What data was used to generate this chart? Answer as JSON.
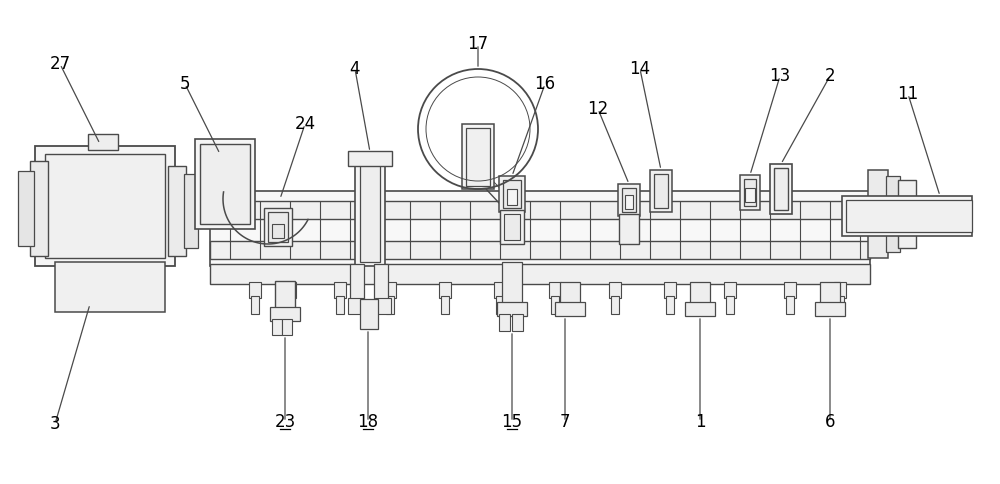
{
  "bg_color": "#ffffff",
  "lc": "#4a4a4a",
  "lw": 1.1,
  "fig_width": 10.0,
  "fig_height": 4.84,
  "label_fontsize": 12
}
